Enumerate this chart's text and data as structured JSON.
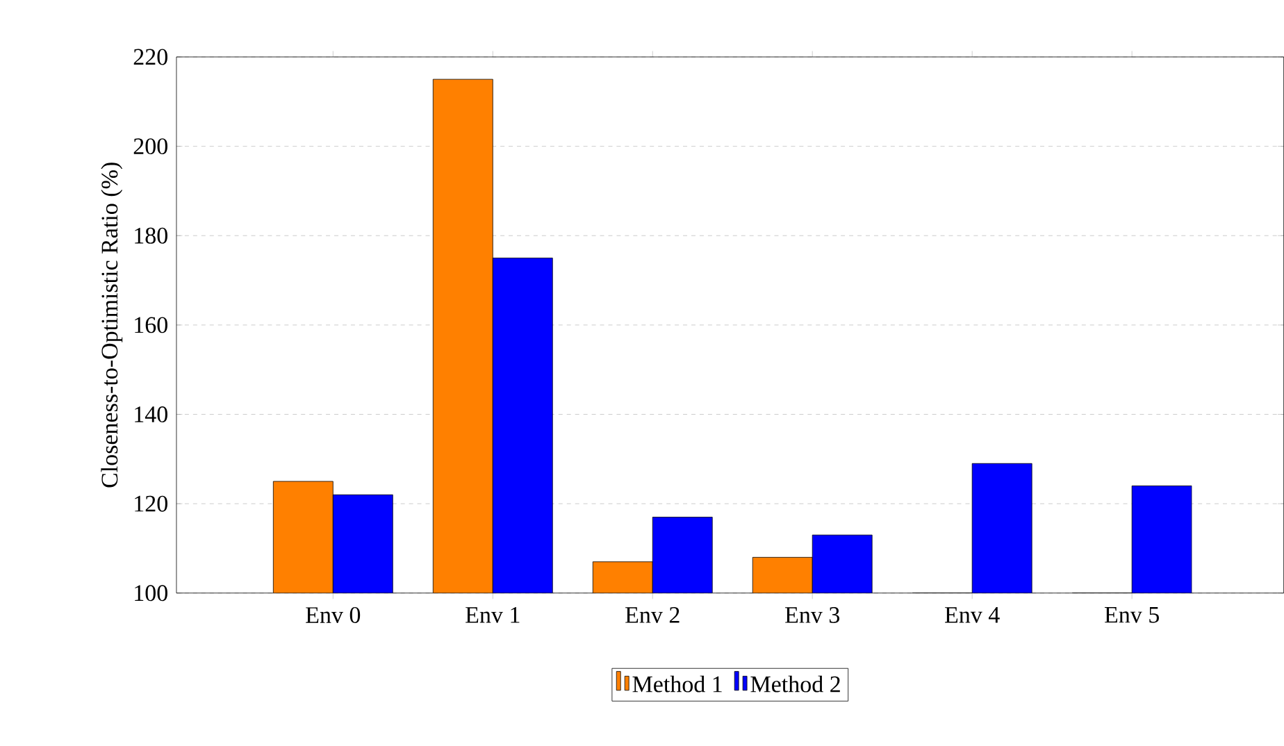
{
  "chart_data": {
    "type": "bar",
    "ylabel": "Closeness-to-Optimistic Ratio (%)",
    "categories": [
      "Env 0",
      "Env 1",
      "Env 2",
      "Env 3",
      "Env 4",
      "Env 5"
    ],
    "series": [
      {
        "name": "Method 1",
        "color": "#ff8000",
        "values": [
          125,
          215,
          107,
          108,
          100,
          100
        ]
      },
      {
        "name": "Method 2",
        "color": "#0000ff",
        "values": [
          122,
          175,
          117,
          113,
          129,
          124
        ]
      }
    ],
    "ylim": [
      100,
      220
    ],
    "yticks": [
      100,
      120,
      140,
      160,
      180,
      200,
      220
    ],
    "grid": "y",
    "legend": "bottom"
  }
}
